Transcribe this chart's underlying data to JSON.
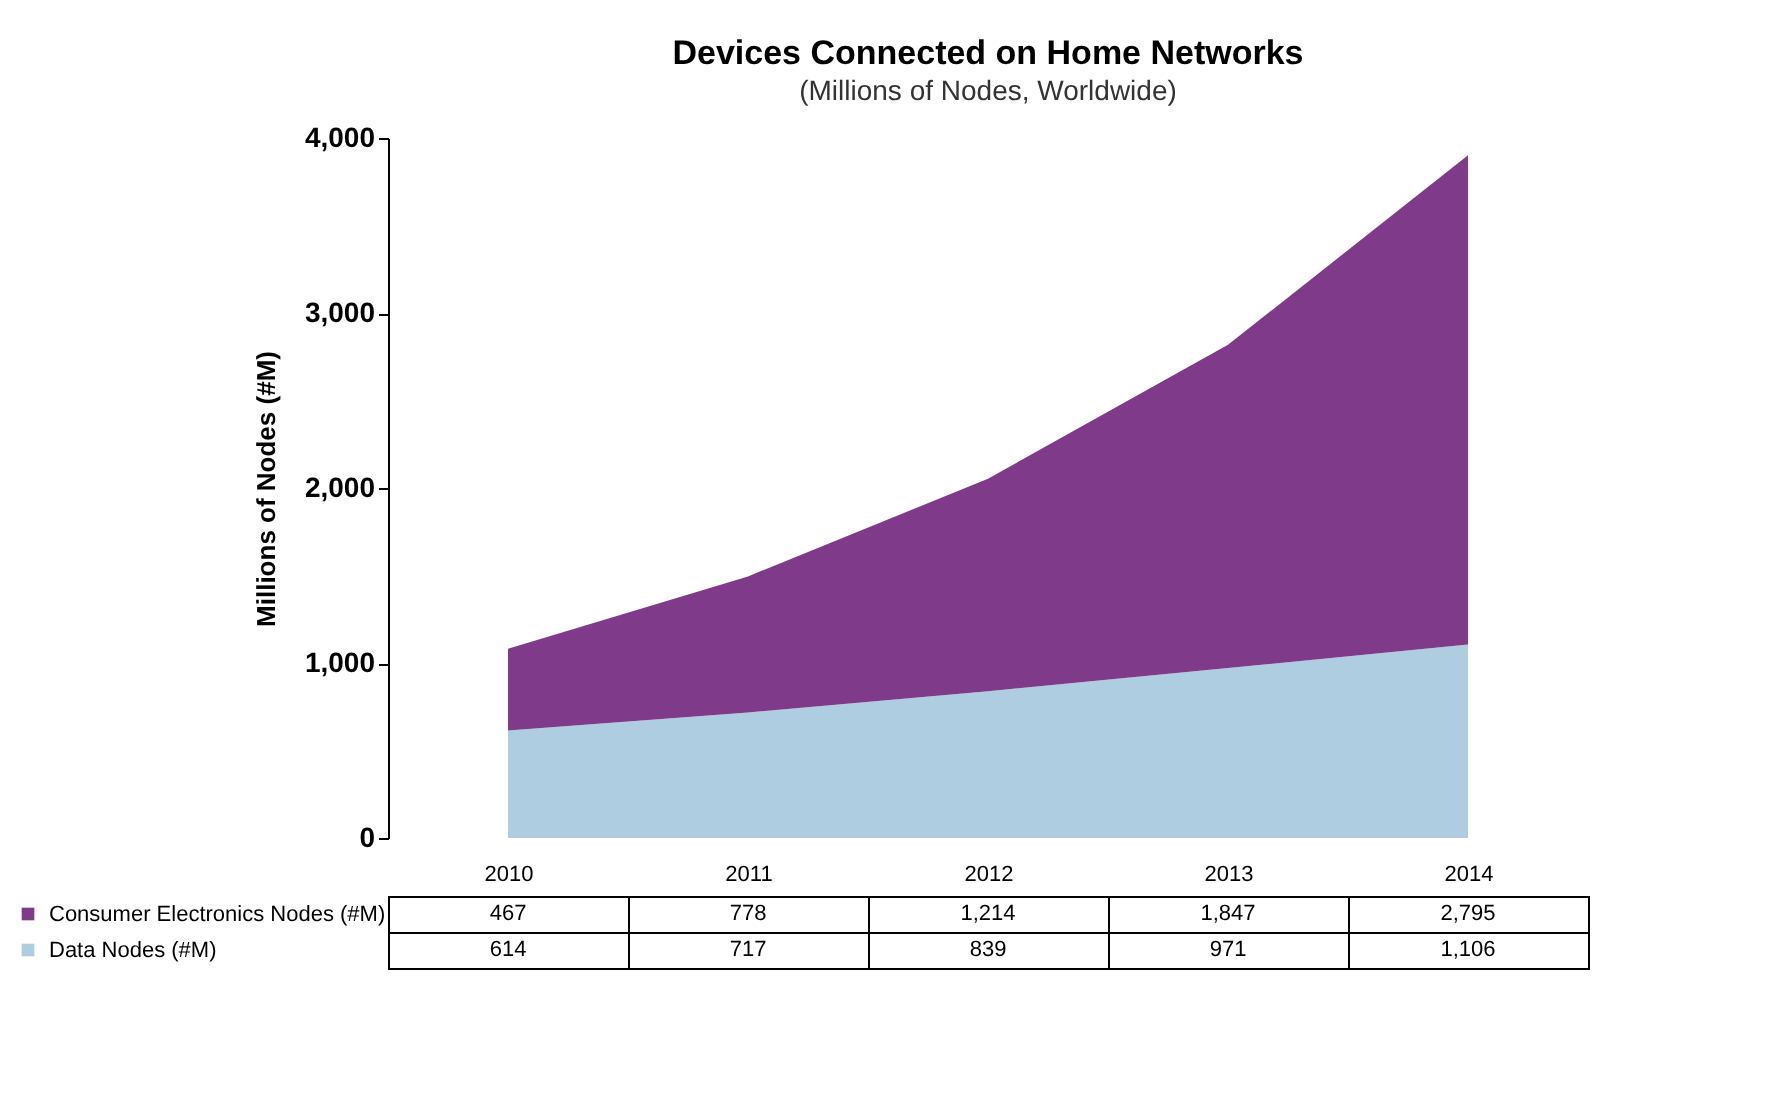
{
  "chart_data": {
    "type": "area",
    "title": "Devices Connected on Home Networks",
    "subtitle": "(Millions of Nodes, Worldwide)",
    "ylabel": "Millions of Nodes (#M)",
    "categories": [
      "2010",
      "2011",
      "2012",
      "2013",
      "2014"
    ],
    "series": [
      {
        "name": "Data Nodes (#M)",
        "color": "#afcde0",
        "values": [
          614,
          717,
          839,
          971,
          1106
        ],
        "value_labels": [
          "614",
          "717",
          "839",
          "971",
          "1,106"
        ]
      },
      {
        "name": "Consumer Electronics Nodes (#M)",
        "color": "#7f3a8a",
        "values": [
          467,
          778,
          1214,
          1847,
          2795
        ],
        "value_labels": [
          "467",
          "778",
          "1,214",
          "1,847",
          "2,795"
        ]
      }
    ],
    "stacked": true,
    "ylim": [
      0,
      4000
    ],
    "yticks": [
      {
        "value": 0,
        "label": "0"
      },
      {
        "value": 1000,
        "label": "1,000"
      },
      {
        "value": 2000,
        "label": "2,000"
      },
      {
        "value": 3000,
        "label": "3,000"
      },
      {
        "value": 4000,
        "label": "4,000"
      }
    ],
    "legend": "bottom left"
  }
}
